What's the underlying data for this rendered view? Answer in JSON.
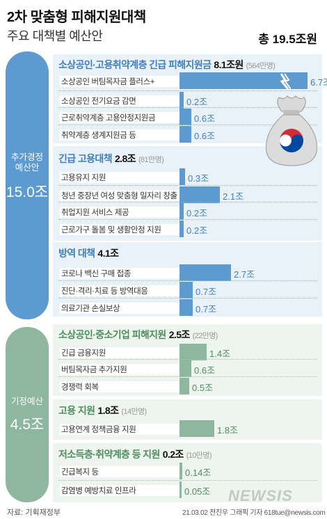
{
  "header": {
    "title": "2차 맞춤형 피해지원대책",
    "subtitle": "주요 대책별 예산안",
    "total": "총 19.5조원"
  },
  "groups": {
    "extra": {
      "label": "추가경정\n예산안",
      "value": "15.0조"
    },
    "regular": {
      "label": "기정예산",
      "value": "4.5조"
    }
  },
  "colors": {
    "blue": "#5d9ad0",
    "green": "#8fb79f"
  },
  "chart_data": {
    "type": "bar",
    "unit": "조",
    "sections": [
      {
        "group": "extra",
        "name": "소상공인·고용취약계층 긴급 피해지원금",
        "amount": "8.1조원",
        "people": "(564만명)",
        "items": [
          {
            "label": "소상공인 버팀목자금 플러스+",
            "value": 6.7,
            "display": "6.7조"
          },
          {
            "label": "소상공인 전기요금 감면",
            "value": 0.2,
            "display": "0.2조"
          },
          {
            "label": "근로취약계층 고용안정지원금",
            "value": 0.6,
            "display": "0.6조"
          },
          {
            "label": "취약계층 생계지원금 등",
            "value": 0.6,
            "display": "0.6조"
          }
        ]
      },
      {
        "group": "extra",
        "name": "긴급 고용대책",
        "amount": "2.8조",
        "people": "(81만명)",
        "items": [
          {
            "label": "고용유지 지원",
            "value": 0.3,
            "display": "0.3조"
          },
          {
            "label": "청년 중장년 여성 맞춤형 일자리 창출",
            "value": 2.1,
            "display": "2.1조"
          },
          {
            "label": "취업지원 서비스 제공",
            "value": 0.2,
            "display": "0.2조"
          },
          {
            "label": "근로가구 돌봄 및 생활안정 지원",
            "value": 0.2,
            "display": "0.2조"
          }
        ]
      },
      {
        "group": "extra",
        "name": "방역 대책",
        "amount": "4.1조",
        "people": "",
        "items": [
          {
            "label": "코로나 백신 구매 접종",
            "value": 2.7,
            "display": "2.7조"
          },
          {
            "label": "진단·격리·치료 등 방역대응",
            "value": 0.7,
            "display": "0.7조"
          },
          {
            "label": "의료기관 손실보상",
            "value": 0.7,
            "display": "0.7조"
          }
        ]
      },
      {
        "group": "regular",
        "name": "소상공인·중소기업 피해지원",
        "amount": "2.5조",
        "people": "(22만명)",
        "items": [
          {
            "label": "긴급 금융지원",
            "value": 1.4,
            "display": "1.4조"
          },
          {
            "label": "버팀목자금 추가지원",
            "value": 0.6,
            "display": "0.6조"
          },
          {
            "label": "경쟁력 회복",
            "value": 0.5,
            "display": "0.5조"
          }
        ]
      },
      {
        "group": "regular",
        "name": "고용 지원",
        "amount": "1.8조",
        "people": "(14만명)",
        "items": [
          {
            "label": "고용연계 정책금융 지원",
            "value": 1.8,
            "display": "1.8조"
          }
        ]
      },
      {
        "group": "regular",
        "name": "저소득층·취약계층 등 지원",
        "amount": "0.2조",
        "people": "(10만명)",
        "items": [
          {
            "label": "긴급복지 등",
            "value": 0.14,
            "display": "0.14조"
          },
          {
            "label": "감염병 예방치료 인프라",
            "value": 0.05,
            "display": "0.05조"
          }
        ]
      }
    ]
  },
  "footer": {
    "source": "자료: 기획재정부",
    "credit": "21.03.02  전진우 그래픽 기자  618tue@newsis.com",
    "watermark": "NEWSIS"
  }
}
